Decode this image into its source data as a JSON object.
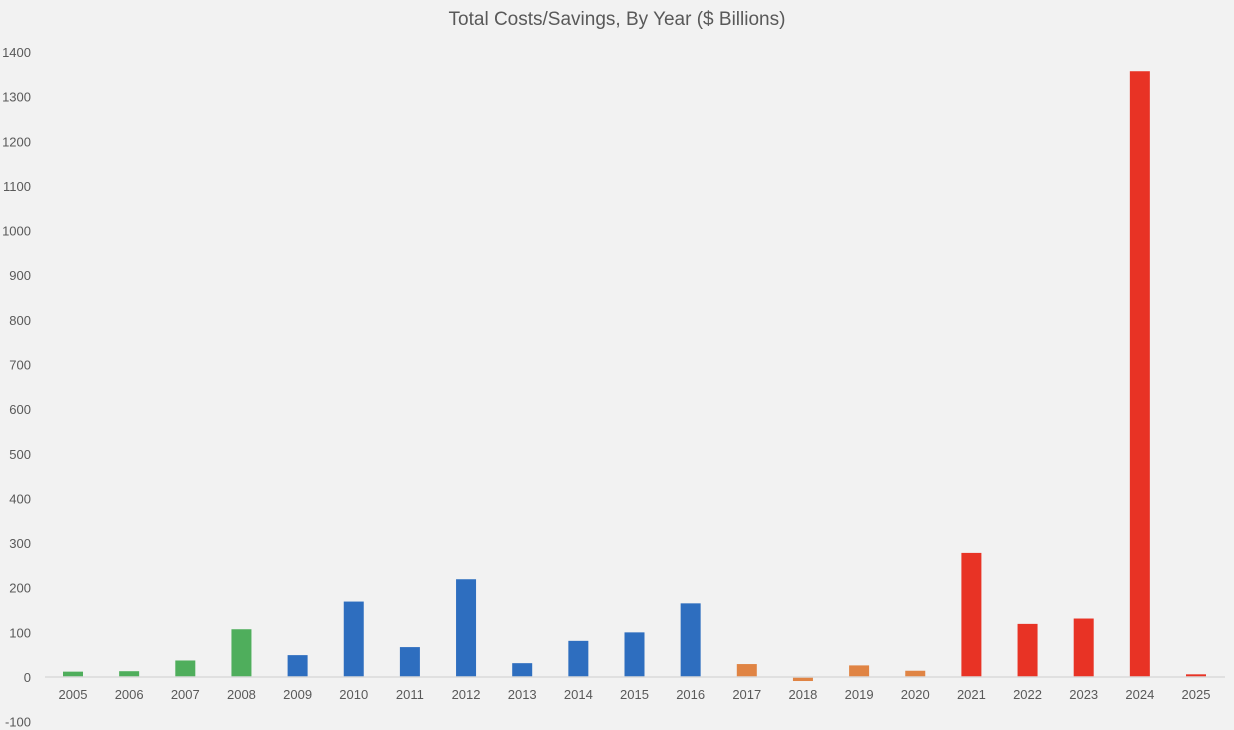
{
  "chart_data": {
    "type": "bar",
    "title": "Total Costs/Savings, By Year ($ Billions)",
    "xlabel": "",
    "ylabel": "",
    "ylim": [
      -100,
      1400
    ],
    "yticks": [
      "-100",
      "0",
      "100",
      "200",
      "300",
      "400",
      "500",
      "600",
      "700",
      "800",
      "900",
      "1000",
      "1100",
      "1200",
      "1300",
      "1400"
    ],
    "grid": false,
    "legend": "none",
    "categories": [
      "2005",
      "2006",
      "2007",
      "2008",
      "2009",
      "2010",
      "2011",
      "2012",
      "2013",
      "2014",
      "2015",
      "2016",
      "2017",
      "2018",
      "2019",
      "2020",
      "2021",
      "2022",
      "2023",
      "2024",
      "2025"
    ],
    "values": [
      12,
      13,
      37,
      107,
      49,
      169,
      67,
      219,
      31,
      81,
      100,
      165,
      29,
      -9,
      26,
      14,
      278,
      119,
      131,
      1357,
      6
    ],
    "colors": [
      "#4fae5c",
      "#4fae5c",
      "#4fae5c",
      "#4fae5c",
      "#2e6ebf",
      "#2e6ebf",
      "#2e6ebf",
      "#2e6ebf",
      "#2e6ebf",
      "#2e6ebf",
      "#2e6ebf",
      "#2e6ebf",
      "#e08444",
      "#e08444",
      "#e08444",
      "#e08444",
      "#e83325",
      "#e83325",
      "#e83325",
      "#e83325",
      "#e83325"
    ]
  }
}
